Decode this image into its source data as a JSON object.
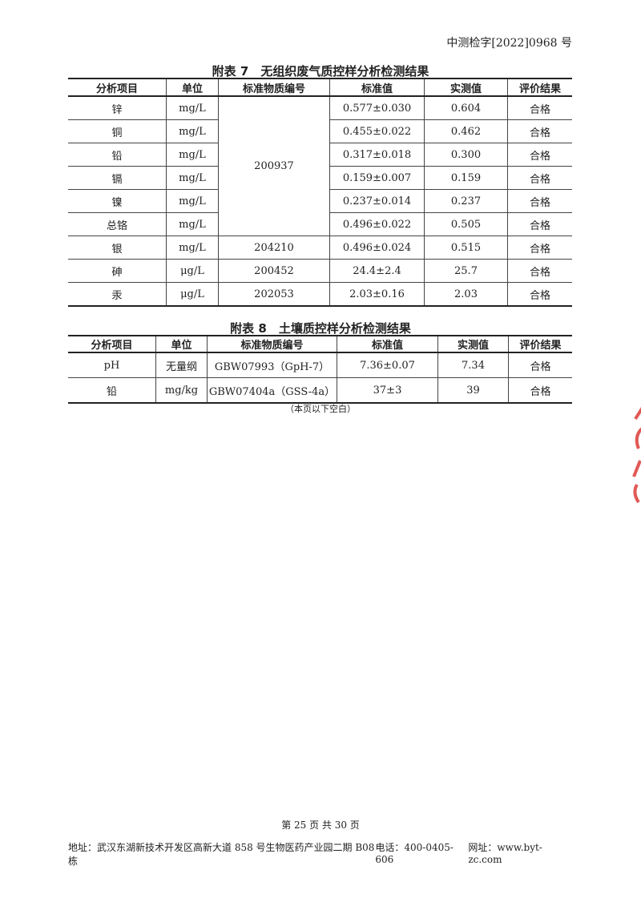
{
  "doc_number": "中测检字[2022]0968 号",
  "table7": {
    "title": "附表 7　无组织废气质控样分析检测结果",
    "headers": [
      "分析项目",
      "单位",
      "标准物质编号",
      "标准值",
      "实测值",
      "评价结果"
    ],
    "rows": [
      {
        "item": "锌",
        "unit": "mg/L",
        "ref": "200937",
        "std": "0.577±0.030",
        "meas": "0.604",
        "result": "合格"
      },
      {
        "item": "铜",
        "unit": "mg/L",
        "std": "0.455±0.022",
        "meas": "0.462",
        "result": "合格"
      },
      {
        "item": "铅",
        "unit": "mg/L",
        "std": "0.317±0.018",
        "meas": "0.300",
        "result": "合格"
      },
      {
        "item": "镉",
        "unit": "mg/L",
        "std": "0.159±0.007",
        "meas": "0.159",
        "result": "合格"
      },
      {
        "item": "镍",
        "unit": "mg/L",
        "std": "0.237±0.014",
        "meas": "0.237",
        "result": "合格"
      },
      {
        "item": "总铬",
        "unit": "mg/L",
        "std": "0.496±0.022",
        "meas": "0.505",
        "result": "合格"
      },
      {
        "item": "银",
        "unit": "mg/L",
        "ref": "204210",
        "std": "0.496±0.024",
        "meas": "0.515",
        "result": "合格"
      },
      {
        "item": "砷",
        "unit": "μg/L",
        "ref": "200452",
        "std": "24.4±2.4",
        "meas": "25.7",
        "result": "合格"
      },
      {
        "item": "汞",
        "unit": "μg/L",
        "ref": "202053",
        "std": "2.03±0.16",
        "meas": "2.03",
        "result": "合格"
      }
    ]
  },
  "table8": {
    "title": "附表 8　土壤质控样分析检测结果",
    "headers": [
      "分析项目",
      "单位",
      "标准物质编号",
      "标准值",
      "实测值",
      "评价结果"
    ],
    "rows": [
      {
        "item": "pH",
        "unit": "无量纲",
        "ref": "GBW07993（GpH-7）",
        "std": "7.36±0.07",
        "meas": "7.34",
        "result": "合格"
      },
      {
        "item": "铅",
        "unit": "mg/kg",
        "ref": "GBW07404a（GSS-4a）",
        "std": "37±3",
        "meas": "39",
        "result": "合格"
      }
    ]
  },
  "blank_note": "（本页以下空白）",
  "page_number": "第 25 页 共 30 页",
  "footer": {
    "address": "地址：武汉东湖新技术开发区高新大道 858 号生物医药产业园二期 B08 栋",
    "phone": "电话：400-0405-606",
    "website": "网址：www.byt-zc.com"
  },
  "stamp_color": "#d9302a"
}
